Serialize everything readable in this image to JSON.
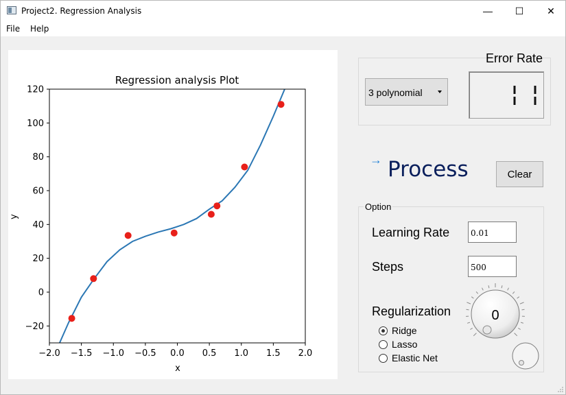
{
  "window": {
    "title": "Project2. Regression Analysis",
    "minimize": "—",
    "maximize": "☐",
    "close": "✕"
  },
  "menu": {
    "items": [
      "File",
      "Help"
    ]
  },
  "chart_data": {
    "type": "scatter",
    "title": "Regression analysis Plot",
    "xlabel": "x",
    "ylabel": "y",
    "xlim": [
      -2.0,
      2.0
    ],
    "ylim": [
      -30,
      120
    ],
    "xticks": [
      "−2.0",
      "−1.5",
      "−1.0",
      "−0.5",
      "0.0",
      "0.5",
      "1.0",
      "1.5",
      "2.0"
    ],
    "yticks": [
      "−20",
      "0",
      "20",
      "40",
      "60",
      "80",
      "100",
      "120"
    ],
    "points": {
      "color": "#e8201a",
      "x": [
        -1.65,
        -1.31,
        -0.77,
        -0.05,
        0.53,
        0.62,
        1.05,
        1.62
      ],
      "y": [
        -15.5,
        8,
        33.5,
        35,
        46,
        51,
        74,
        111
      ]
    },
    "curve": {
      "color": "#2b77b4",
      "x": [
        -1.84,
        -1.7,
        -1.5,
        -1.3,
        -1.1,
        -0.9,
        -0.7,
        -0.5,
        -0.3,
        -0.1,
        0.1,
        0.3,
        0.5,
        0.7,
        0.9,
        1.1,
        1.3,
        1.5,
        1.7
      ],
      "y": [
        -30,
        -18,
        -3,
        8,
        18,
        25,
        30,
        33,
        35.5,
        37.5,
        40,
        43.5,
        49,
        54,
        62,
        72,
        87,
        104,
        122
      ]
    }
  },
  "model": {
    "selected": "3 polynomial"
  },
  "error_rate": {
    "label": "Error Rate",
    "value": "11"
  },
  "process": {
    "arrow": "→",
    "label": "Process"
  },
  "clear_label": "Clear",
  "options": {
    "title": "Option",
    "learning_rate_label": "Learning Rate",
    "learning_rate_value": "0.01",
    "steps_label": "Steps",
    "steps_value": "500",
    "regularization_label": "Regularization",
    "methods": [
      "Ridge",
      "Lasso",
      "Elastic Net"
    ],
    "selected_method": "Ridge",
    "dial_value": "0"
  }
}
